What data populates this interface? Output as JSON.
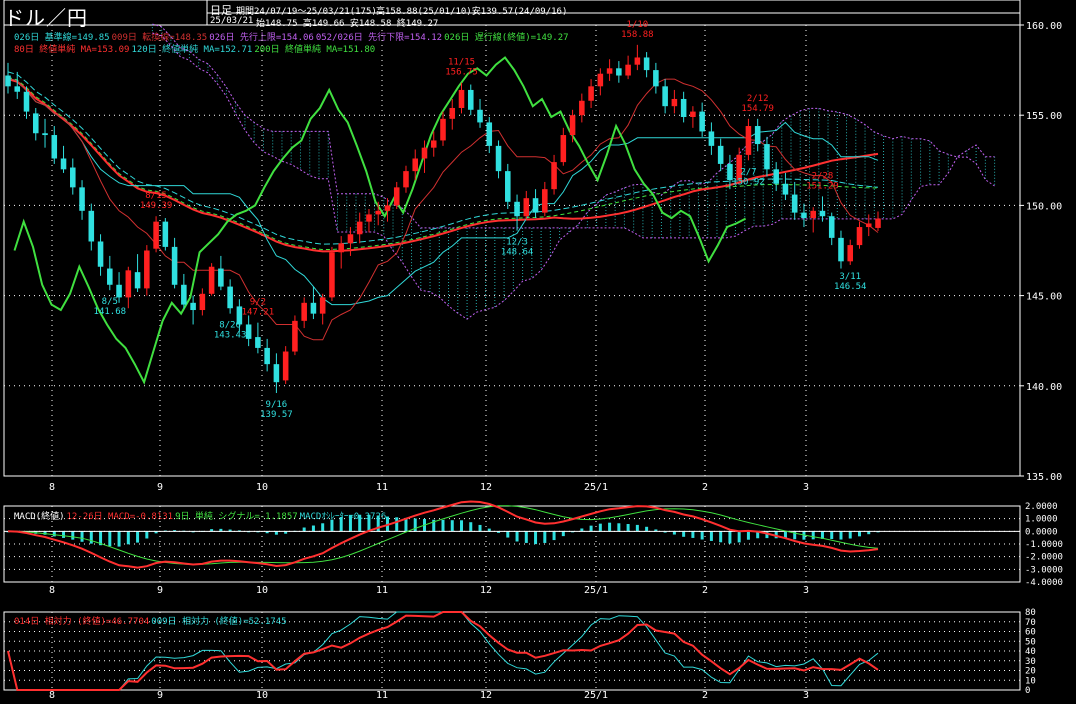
{
  "header": {
    "title": "ドル／円",
    "timeframe": "日足",
    "period": "期間24/07/19～25/03/21(175)",
    "high_low": "高158.88(25/01/10)安139.57(24/09/16)",
    "date": "25/03/21",
    "ohlc": "始148.75 高149.66 安148.58 終149.27"
  },
  "main_legend": {
    "row1": [
      {
        "text": "026日 基準線=149.85",
        "color": "#30d8d8"
      },
      {
        "text": "009日 転換線=148.35",
        "color": "#d03030"
      },
      {
        "text": "026日 先行上限=154.06",
        "color": "#c060f0"
      },
      {
        "text": "052/026日 先行下限=154.12",
        "color": "#c060f0"
      },
      {
        "text": "026日 遅行線(終値)=149.27",
        "color": "#40e040"
      }
    ],
    "row2": [
      {
        "text": "80日 終値単純 MA=153.09",
        "color": "#ff3030"
      },
      {
        "text": "120日 終値単純 MA=152.71",
        "color": "#30d8d8"
      },
      {
        "text": "200日 終値単純 MA=151.80",
        "color": "#40e040"
      }
    ]
  },
  "macd_legend": [
    {
      "text": "MACD(終値)",
      "color": "#ffffff"
    },
    {
      "text": "12-26日 MACD=-0.8131",
      "color": "#ff3030"
    },
    {
      "text": "9日 単純 シグナル=-1.1857",
      "color": "#40e040"
    },
    {
      "text": "MACDｵｼﾚｰﾀｰ=0.3726",
      "color": "#30d8d8"
    }
  ],
  "rsi_legend": [
    {
      "text": "014日 相対力 (終値)=46.7704",
      "color": "#ff3030"
    },
    {
      "text": "009日 相対力 (終値)=52.1745",
      "color": "#30d8d8"
    }
  ],
  "colors": {
    "background": "#000000",
    "grid": "#ffffff",
    "candle_up": "#ff2020",
    "candle_down": "#30e0e0",
    "kumo": "#c060f0",
    "kijun": "#30d8d8",
    "tenkan": "#d03030",
    "chikou": "#40e040",
    "ma80": "#ff3030",
    "ma120": "#30d8d8",
    "ma200": "#40e040"
  },
  "chart_data": [
    {
      "type": "candlestick",
      "title": "ドル／円 日足",
      "y_ticks": [
        "160.00",
        "155.00",
        "150.00",
        "145.00",
        "140.00",
        "135.00"
      ],
      "ylim": [
        135,
        160
      ],
      "x_ticks": [
        "8",
        "9",
        "10",
        "11",
        "12",
        "25/1",
        "2",
        "3"
      ],
      "annotations": [
        {
          "date": "8/5",
          "value": "141.68",
          "kind": "low"
        },
        {
          "date": "8/15",
          "value": "149.39",
          "kind": "high"
        },
        {
          "date": "8/26",
          "value": "143.43",
          "kind": "low"
        },
        {
          "date": "9/2",
          "value": "147.21",
          "kind": "high"
        },
        {
          "date": "9/16",
          "value": "139.57",
          "kind": "low"
        },
        {
          "date": "11/15",
          "value": "156.75",
          "kind": "high"
        },
        {
          "date": "12/3",
          "value": "148.64",
          "kind": "low"
        },
        {
          "date": "1/10",
          "value": "158.88",
          "kind": "high"
        },
        {
          "date": "2/7",
          "value": "150.92",
          "kind": "low"
        },
        {
          "date": "2/12",
          "value": "154.79",
          "kind": "high"
        },
        {
          "date": "2/28",
          "value": "151.29",
          "kind": "high"
        },
        {
          "date": "3/11",
          "value": "146.54",
          "kind": "low"
        }
      ],
      "candles_ohlc": [
        [
          157.2,
          157.9,
          156.2,
          156.6
        ],
        [
          156.6,
          157.4,
          155.9,
          156.3
        ],
        [
          156.3,
          156.6,
          154.8,
          155.2
        ],
        [
          155.1,
          155.4,
          153.6,
          154.0
        ],
        [
          154.0,
          154.8,
          153.2,
          153.9
        ],
        [
          153.9,
          154.4,
          152.3,
          152.6
        ],
        [
          152.6,
          153.3,
          151.8,
          152.0
        ],
        [
          152.1,
          152.6,
          150.6,
          151.0
        ],
        [
          151.0,
          151.4,
          149.2,
          149.7
        ],
        [
          149.7,
          150.1,
          147.5,
          148.0
        ],
        [
          148.0,
          148.4,
          146.1,
          146.6
        ],
        [
          146.5,
          147.2,
          145.3,
          145.6
        ],
        [
          145.6,
          146.3,
          144.6,
          144.9
        ],
        [
          144.9,
          146.6,
          144.3,
          146.4
        ],
        [
          146.3,
          147.3,
          145.2,
          145.4
        ],
        [
          145.4,
          147.8,
          145.0,
          147.5
        ],
        [
          147.6,
          149.4,
          147.4,
          149.1
        ],
        [
          149.1,
          149.3,
          147.5,
          147.7
        ],
        [
          147.7,
          148.2,
          145.4,
          145.6
        ],
        [
          145.6,
          146.2,
          144.3,
          144.5
        ],
        [
          144.6,
          145.0,
          143.4,
          144.2
        ],
        [
          144.2,
          145.4,
          143.9,
          145.1
        ],
        [
          145.1,
          146.8,
          145.0,
          146.6
        ],
        [
          146.5,
          147.2,
          145.3,
          145.5
        ],
        [
          145.5,
          145.9,
          144.0,
          144.3
        ],
        [
          144.4,
          144.8,
          143.0,
          143.4
        ],
        [
          143.4,
          143.9,
          142.2,
          142.6
        ],
        [
          142.7,
          143.5,
          141.8,
          142.1
        ],
        [
          142.1,
          142.6,
          140.8,
          141.2
        ],
        [
          141.2,
          141.8,
          139.6,
          140.2
        ],
        [
          140.3,
          142.2,
          140.1,
          141.9
        ],
        [
          141.9,
          143.9,
          141.7,
          143.6
        ],
        [
          143.6,
          144.9,
          143.2,
          144.6
        ],
        [
          144.6,
          145.5,
          143.7,
          144.0
        ],
        [
          144.0,
          145.1,
          143.4,
          144.9
        ],
        [
          144.9,
          147.7,
          144.7,
          147.4
        ],
        [
          147.4,
          148.3,
          146.5,
          147.9
        ],
        [
          147.9,
          148.8,
          147.2,
          148.4
        ],
        [
          148.4,
          149.6,
          147.9,
          149.1
        ],
        [
          149.1,
          149.8,
          148.5,
          149.5
        ],
        [
          149.5,
          150.2,
          148.9,
          149.7
        ],
        [
          149.7,
          150.4,
          149.1,
          150.0
        ],
        [
          150.0,
          151.3,
          149.8,
          151.0
        ],
        [
          151.0,
          152.2,
          150.7,
          151.9
        ],
        [
          151.9,
          153.1,
          151.4,
          152.6
        ],
        [
          152.6,
          153.6,
          151.8,
          153.2
        ],
        [
          153.2,
          154.1,
          152.7,
          153.6
        ],
        [
          153.6,
          155.2,
          153.3,
          154.8
        ],
        [
          154.8,
          155.9,
          154.2,
          155.4
        ],
        [
          155.4,
          156.8,
          155.1,
          156.4
        ],
        [
          156.4,
          156.7,
          155.0,
          155.3
        ],
        [
          155.3,
          155.9,
          154.3,
          154.6
        ],
        [
          154.6,
          154.9,
          152.9,
          153.3
        ],
        [
          153.3,
          153.6,
          151.5,
          151.9
        ],
        [
          151.9,
          152.3,
          149.8,
          150.2
        ],
        [
          150.2,
          150.6,
          148.6,
          149.4
        ],
        [
          149.4,
          150.8,
          149.2,
          150.4
        ],
        [
          150.4,
          150.9,
          149.3,
          149.6
        ],
        [
          149.6,
          151.3,
          149.4,
          150.9
        ],
        [
          150.9,
          152.8,
          150.6,
          152.4
        ],
        [
          152.4,
          154.3,
          152.2,
          153.9
        ],
        [
          153.9,
          155.3,
          153.5,
          155.0
        ],
        [
          155.0,
          156.2,
          154.6,
          155.8
        ],
        [
          155.8,
          157.0,
          155.4,
          156.6
        ],
        [
          156.6,
          157.6,
          156.1,
          157.3
        ],
        [
          157.3,
          158.1,
          156.9,
          157.6
        ],
        [
          157.6,
          158.0,
          156.8,
          157.2
        ],
        [
          157.2,
          158.3,
          157.0,
          157.8
        ],
        [
          157.8,
          158.9,
          157.5,
          158.2
        ],
        [
          158.2,
          158.5,
          157.1,
          157.5
        ],
        [
          157.5,
          157.9,
          156.2,
          156.6
        ],
        [
          156.6,
          157.0,
          155.1,
          155.5
        ],
        [
          155.5,
          156.4,
          155.1,
          155.9
        ],
        [
          155.9,
          156.3,
          154.6,
          154.9
        ],
        [
          154.9,
          155.5,
          154.3,
          155.2
        ],
        [
          155.2,
          155.7,
          153.8,
          154.1
        ],
        [
          154.1,
          154.6,
          152.8,
          153.3
        ],
        [
          153.3,
          153.7,
          151.9,
          152.3
        ],
        [
          152.3,
          152.8,
          150.9,
          151.4
        ],
        [
          151.4,
          153.2,
          151.2,
          152.8
        ],
        [
          152.8,
          154.8,
          152.5,
          154.4
        ],
        [
          154.4,
          154.8,
          153.0,
          153.4
        ],
        [
          153.4,
          153.8,
          151.6,
          152.0
        ],
        [
          152.0,
          152.4,
          150.8,
          151.2
        ],
        [
          151.2,
          151.8,
          150.3,
          150.6
        ],
        [
          150.6,
          151.3,
          149.2,
          149.6
        ],
        [
          149.6,
          150.1,
          148.8,
          149.3
        ],
        [
          149.3,
          149.9,
          148.5,
          149.7
        ],
        [
          149.7,
          150.5,
          149.1,
          149.4
        ],
        [
          149.4,
          149.6,
          147.8,
          148.2
        ],
        [
          148.2,
          148.6,
          146.5,
          146.9
        ],
        [
          146.9,
          148.1,
          146.7,
          147.8
        ],
        [
          147.8,
          149.1,
          147.6,
          148.8
        ],
        [
          148.8,
          149.5,
          148.3,
          149.0
        ],
        [
          148.75,
          149.66,
          148.58,
          149.27
        ]
      ],
      "macd_y_ticks": [
        "2.0000",
        "1.0000",
        "0.0000",
        "-1.0000",
        "-2.0000",
        "-3.0000",
        "-4.0000"
      ],
      "macd_ylim": [
        -4,
        2
      ],
      "rsi_y_ticks": [
        "80",
        "70",
        "60",
        "50",
        "40",
        "30",
        "20",
        "10",
        "0"
      ],
      "rsi_ylim": [
        0,
        80
      ]
    }
  ]
}
